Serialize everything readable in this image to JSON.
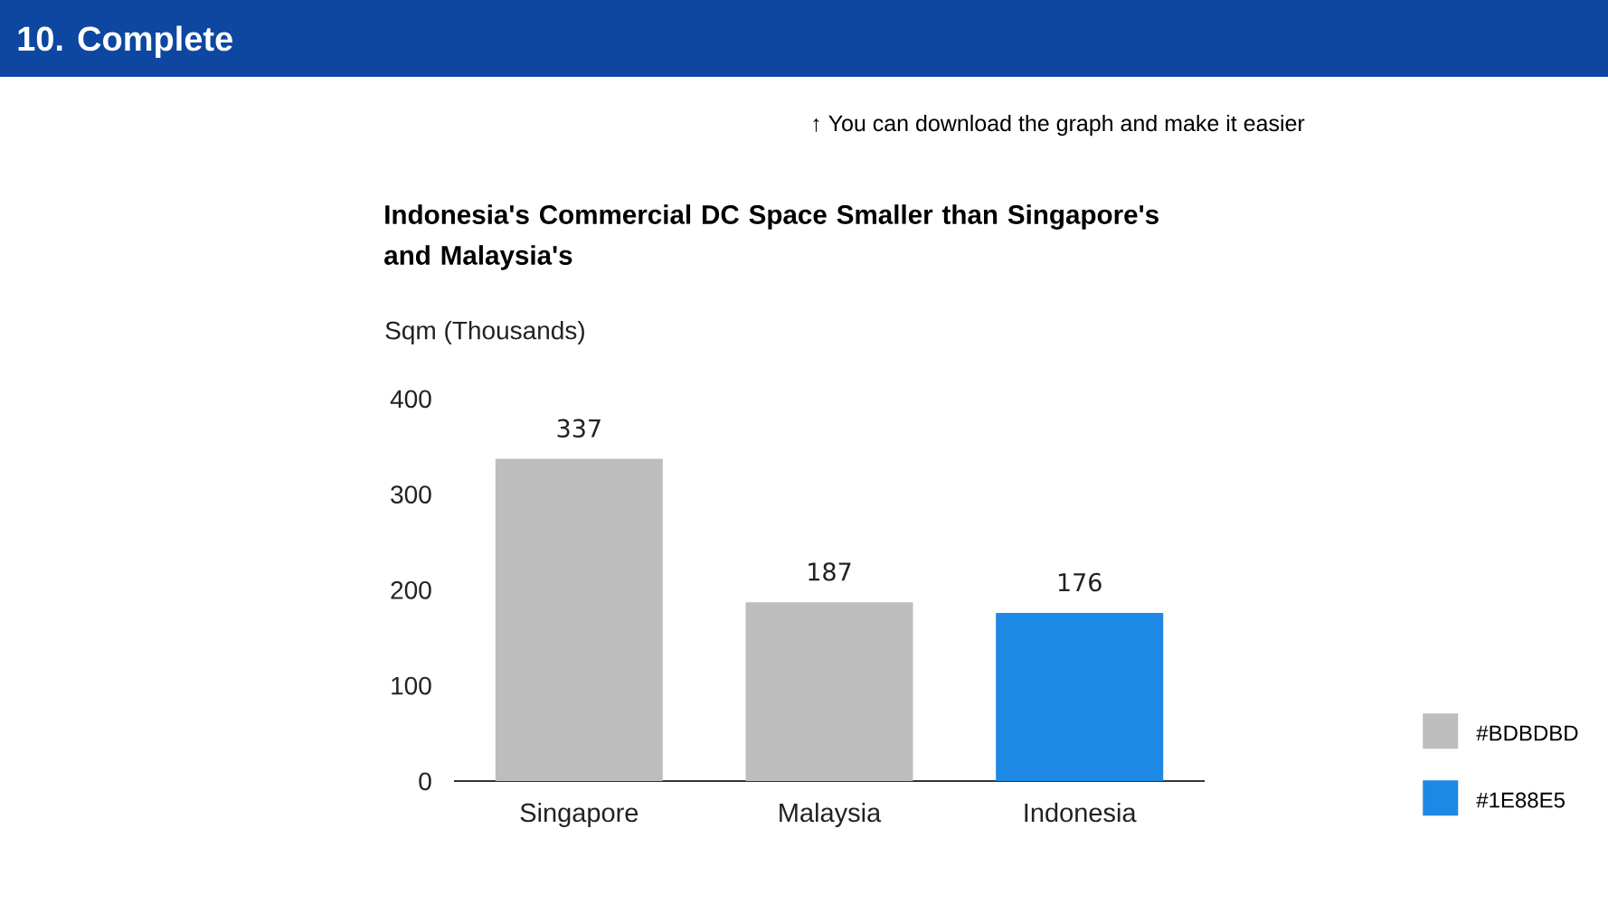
{
  "chart_data": {
    "type": "bar",
    "title": "Indonesia's Commercial DC Space Smaller than Singapore's and Malaysia's",
    "ylabel": "Sqm (Thousands)",
    "categories": [
      "Singapore",
      "Malaysia",
      "Indonesia"
    ],
    "series": [
      {
        "name": "#BDBDBD",
        "color": "#bdbdbd",
        "values": [
          337,
          187,
          null
        ]
      },
      {
        "name": "#1E88E5",
        "color": "#1e88e5",
        "values": [
          null,
          null,
          176
        ]
      }
    ],
    "ylim": [
      0,
      400
    ],
    "yticks": [
      0,
      100,
      200,
      300,
      400
    ],
    "data_labels": true,
    "legend": "right",
    "annotations": [
      "10. Complete",
      "↑ You can download the graph and make it easier"
    ]
  }
}
